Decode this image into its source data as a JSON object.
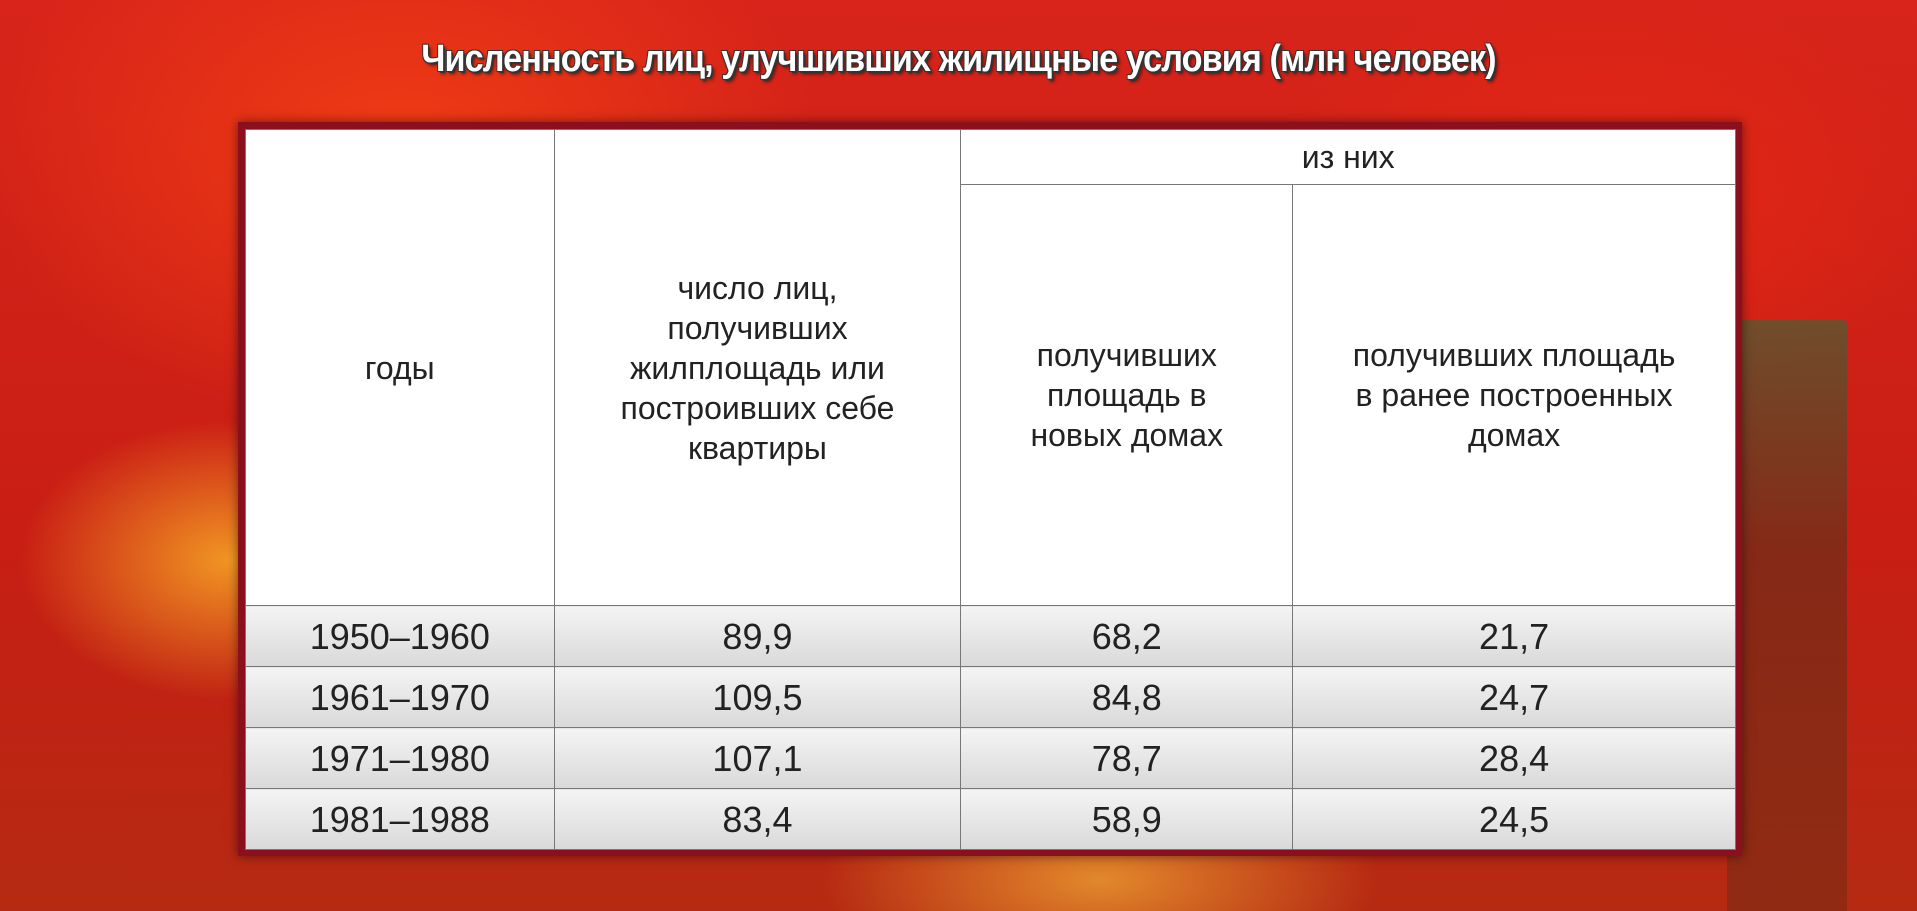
{
  "title": "Численность лиц, улучшивших жилищные условия (млн человек)",
  "chart_data": {
    "type": "table",
    "title": "Численность лиц, улучшивших жилищные условия (млн человек)",
    "group_header": "из них",
    "columns": [
      "годы",
      "число лиц, получивших жилплощадь или построивших себе квартиры",
      "получивших площадь в новых домах",
      "получивших площадь в ранее построенных домах"
    ],
    "rows": [
      [
        "1950–1960",
        "89,9",
        "68,2",
        "21,7"
      ],
      [
        "1961–1970",
        "109,5",
        "84,8",
        "24,7"
      ],
      [
        "1971–1980",
        "107,1",
        "78,7",
        "28,4"
      ],
      [
        "1981–1988",
        "83,4",
        "58,9",
        "24,5"
      ]
    ]
  }
}
